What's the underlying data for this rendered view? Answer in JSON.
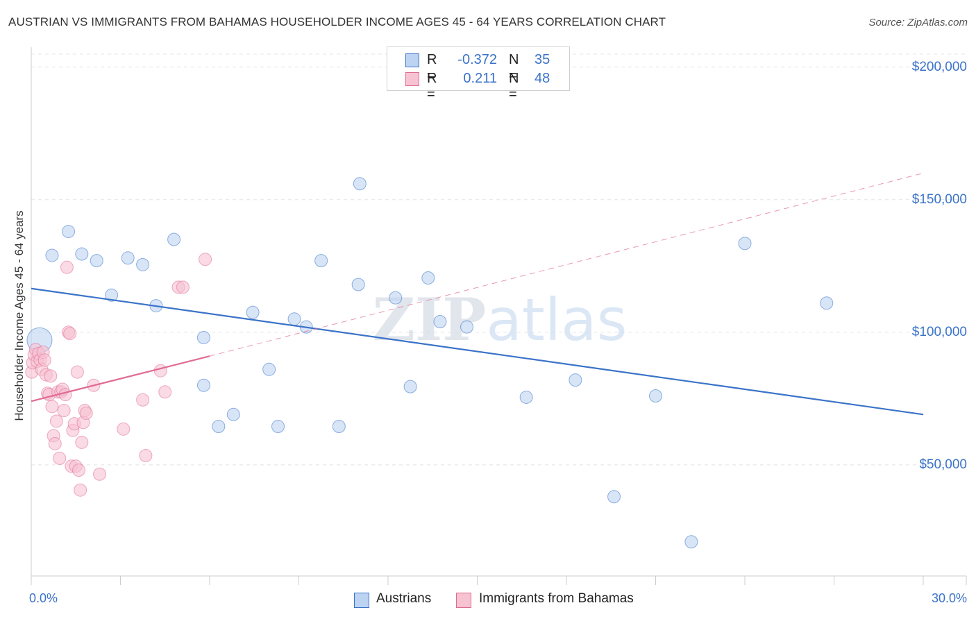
{
  "chart_data": {
    "type": "scatter",
    "title": "AUSTRIAN VS IMMIGRANTS FROM BAHAMAS HOUSEHOLDER INCOME AGES 45 - 64 YEARS CORRELATION CHART",
    "source": "Source: ZipAtlas.com",
    "ylabel": "Householder Income Ages 45 - 64 years",
    "xlabel": "",
    "xlim": [
      0,
      30
    ],
    "ylim": [
      0,
      210000
    ],
    "x_tick_labels": [
      "0.0%",
      "30.0%"
    ],
    "y_ticks": [
      200000,
      150000,
      100000,
      50000
    ],
    "y_tick_labels": [
      "$200,000",
      "$150,000",
      "$100,000",
      "$50,000"
    ],
    "watermark": "ZIPatlas",
    "series": [
      {
        "name": "Austrians",
        "color": "#3b73c8",
        "fill": "#bcd3f2",
        "R": "-0.372",
        "N": "35",
        "trend": {
          "x": [
            0,
            30
          ],
          "y": [
            116500,
            69000
          ],
          "dashed_until": null
        },
        "points": [
          {
            "x": 0.28,
            "y": 97000,
            "big": true
          },
          {
            "x": 0.7,
            "y": 129000
          },
          {
            "x": 1.25,
            "y": 138000
          },
          {
            "x": 1.7,
            "y": 129500
          },
          {
            "x": 2.2,
            "y": 127000
          },
          {
            "x": 2.7,
            "y": 114000
          },
          {
            "x": 3.25,
            "y": 128000
          },
          {
            "x": 3.75,
            "y": 125500
          },
          {
            "x": 4.2,
            "y": 110000
          },
          {
            "x": 4.8,
            "y": 135000
          },
          {
            "x": 5.8,
            "y": 98000
          },
          {
            "x": 5.8,
            "y": 80000
          },
          {
            "x": 6.3,
            "y": 64500
          },
          {
            "x": 6.8,
            "y": 69000
          },
          {
            "x": 7.45,
            "y": 107500
          },
          {
            "x": 8.0,
            "y": 86000
          },
          {
            "x": 8.3,
            "y": 64500
          },
          {
            "x": 8.85,
            "y": 105000
          },
          {
            "x": 9.25,
            "y": 102000
          },
          {
            "x": 9.75,
            "y": 127000
          },
          {
            "x": 10.35,
            "y": 64500
          },
          {
            "x": 11.0,
            "y": 118000
          },
          {
            "x": 11.05,
            "y": 156000
          },
          {
            "x": 12.25,
            "y": 113000
          },
          {
            "x": 12.75,
            "y": 79500
          },
          {
            "x": 13.35,
            "y": 120500
          },
          {
            "x": 13.75,
            "y": 104000
          },
          {
            "x": 14.65,
            "y": 102000
          },
          {
            "x": 16.65,
            "y": 75500
          },
          {
            "x": 18.3,
            "y": 82000
          },
          {
            "x": 19.6,
            "y": 38000
          },
          {
            "x": 21.0,
            "y": 76000
          },
          {
            "x": 22.2,
            "y": 21000
          },
          {
            "x": 24.0,
            "y": 133500
          },
          {
            "x": 26.75,
            "y": 111000
          }
        ]
      },
      {
        "name": "Immigrants from Bahamas",
        "color": "#e06b93",
        "fill": "#f7c2d2",
        "R": "0.211",
        "N": "48",
        "trend": {
          "x": [
            0,
            6.0
          ],
          "y": [
            74000,
            91000
          ],
          "dashed_until": 30,
          "dashed_y": 160000
        },
        "points": [
          {
            "x": 0.02,
            "y": 85000
          },
          {
            "x": 0.05,
            "y": 88500
          },
          {
            "x": 0.1,
            "y": 91500
          },
          {
            "x": 0.15,
            "y": 93500
          },
          {
            "x": 0.2,
            "y": 89000
          },
          {
            "x": 0.25,
            "y": 92000
          },
          {
            "x": 0.3,
            "y": 89500
          },
          {
            "x": 0.35,
            "y": 86000
          },
          {
            "x": 0.4,
            "y": 92500
          },
          {
            "x": 0.45,
            "y": 89500
          },
          {
            "x": 0.5,
            "y": 84000
          },
          {
            "x": 0.55,
            "y": 77000
          },
          {
            "x": 0.6,
            "y": 76500
          },
          {
            "x": 0.65,
            "y": 83500
          },
          {
            "x": 0.7,
            "y": 72000
          },
          {
            "x": 0.75,
            "y": 61000
          },
          {
            "x": 0.8,
            "y": 58000
          },
          {
            "x": 0.85,
            "y": 66500
          },
          {
            "x": 0.9,
            "y": 77500
          },
          {
            "x": 0.95,
            "y": 52500
          },
          {
            "x": 1.0,
            "y": 77500
          },
          {
            "x": 1.05,
            "y": 78500
          },
          {
            "x": 1.1,
            "y": 70500
          },
          {
            "x": 1.15,
            "y": 76500
          },
          {
            "x": 1.2,
            "y": 124500
          },
          {
            "x": 1.25,
            "y": 100000
          },
          {
            "x": 1.3,
            "y": 99500
          },
          {
            "x": 1.35,
            "y": 49500
          },
          {
            "x": 1.4,
            "y": 63000
          },
          {
            "x": 1.45,
            "y": 65500
          },
          {
            "x": 1.5,
            "y": 49500
          },
          {
            "x": 1.55,
            "y": 85000
          },
          {
            "x": 1.6,
            "y": 48000
          },
          {
            "x": 1.65,
            "y": 40500
          },
          {
            "x": 1.7,
            "y": 58500
          },
          {
            "x": 1.75,
            "y": 66000
          },
          {
            "x": 1.8,
            "y": 70500
          },
          {
            "x": 1.85,
            "y": 69500
          },
          {
            "x": 2.1,
            "y": 80000
          },
          {
            "x": 2.3,
            "y": 46500
          },
          {
            "x": 3.1,
            "y": 63500
          },
          {
            "x": 3.75,
            "y": 74500
          },
          {
            "x": 3.85,
            "y": 53500
          },
          {
            "x": 4.35,
            "y": 85500
          },
          {
            "x": 4.5,
            "y": 77500
          },
          {
            "x": 4.95,
            "y": 117000
          },
          {
            "x": 5.1,
            "y": 117000
          },
          {
            "x": 5.85,
            "y": 127500
          }
        ]
      }
    ],
    "legend_position": "top-center"
  },
  "legend": {
    "r_label": "R =",
    "n_label": "N ="
  }
}
